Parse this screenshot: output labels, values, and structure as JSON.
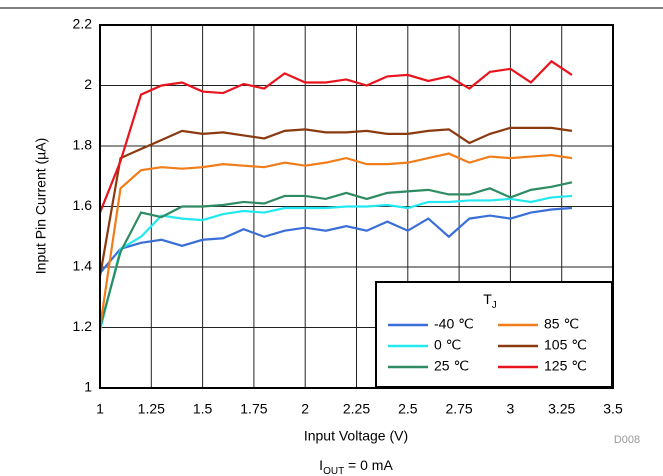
{
  "chart_data": {
    "type": "line",
    "xlabel": "Input Voltage (V)",
    "ylabel": "Input Pin Current (µA)",
    "code": "D008",
    "caption": {
      "text": "I",
      "sub": "OUT",
      "rest": " = 0 mA"
    },
    "legend_title": {
      "text": "T",
      "sub": "J"
    },
    "legend_position": "lower right",
    "grid": true,
    "x": [
      1,
      1.1,
      1.2,
      1.3,
      1.4,
      1.5,
      1.6,
      1.7,
      1.8,
      1.9,
      2,
      2.1,
      2.2,
      2.3,
      2.4,
      2.5,
      2.6,
      2.7,
      2.8,
      2.9,
      3,
      3.1,
      3.2,
      3.3
    ],
    "xlim": [
      1,
      3.5
    ],
    "xticks": [
      1,
      1.25,
      1.5,
      1.75,
      2,
      2.25,
      2.5,
      2.75,
      3,
      3.25,
      3.5
    ],
    "ylim": [
      1,
      2.2
    ],
    "yticks": [
      1,
      1.2,
      1.4,
      1.6,
      1.8,
      2,
      2.2
    ],
    "series": [
      {
        "name": "-40 ℃",
        "color": "#3a6fd8",
        "values": [
          1.38,
          1.46,
          1.48,
          1.49,
          1.47,
          1.49,
          1.495,
          1.525,
          1.5,
          1.52,
          1.53,
          1.52,
          1.535,
          1.52,
          1.55,
          1.52,
          1.56,
          1.5,
          1.56,
          1.57,
          1.56,
          1.58,
          1.59,
          1.595
        ]
      },
      {
        "name": "0 ℃",
        "color": "#22e8f0",
        "values": [
          1.19,
          1.46,
          1.5,
          1.57,
          1.56,
          1.555,
          1.575,
          1.585,
          1.58,
          1.595,
          1.595,
          1.595,
          1.6,
          1.6,
          1.605,
          1.595,
          1.615,
          1.615,
          1.62,
          1.62,
          1.625,
          1.615,
          1.63,
          1.635
        ]
      },
      {
        "name": "25 ℃",
        "color": "#2e8b62",
        "values": [
          1.2,
          1.45,
          1.58,
          1.565,
          1.6,
          1.6,
          1.605,
          1.615,
          1.61,
          1.635,
          1.635,
          1.625,
          1.645,
          1.625,
          1.645,
          1.65,
          1.655,
          1.64,
          1.64,
          1.66,
          1.63,
          1.655,
          1.665,
          1.68
        ]
      },
      {
        "name": "85 ℃",
        "color": "#f07d1a",
        "values": [
          1.2,
          1.66,
          1.72,
          1.73,
          1.725,
          1.73,
          1.74,
          1.735,
          1.73,
          1.745,
          1.735,
          1.745,
          1.76,
          1.74,
          1.74,
          1.745,
          1.76,
          1.775,
          1.745,
          1.765,
          1.76,
          1.765,
          1.77,
          1.76
        ]
      },
      {
        "name": "105 ℃",
        "color": "#8b3a10",
        "values": [
          1.37,
          1.76,
          1.79,
          1.82,
          1.85,
          1.84,
          1.845,
          1.835,
          1.825,
          1.85,
          1.855,
          1.845,
          1.845,
          1.85,
          1.84,
          1.84,
          1.85,
          1.855,
          1.81,
          1.84,
          1.86,
          1.86,
          1.86,
          1.85
        ]
      },
      {
        "name": "125 ℃",
        "color": "#e8141e",
        "values": [
          1.58,
          1.75,
          1.97,
          2.0,
          2.01,
          1.98,
          1.975,
          2.005,
          1.99,
          2.04,
          2.01,
          2.01,
          2.02,
          2.0,
          2.03,
          2.035,
          2.015,
          2.03,
          1.99,
          2.045,
          2.055,
          2.01,
          2.08,
          2.035
        ]
      }
    ]
  }
}
